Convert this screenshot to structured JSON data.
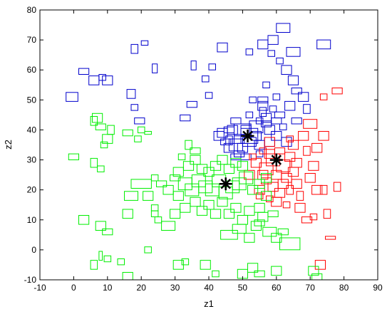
{
  "chart_data": {
    "type": "scatter",
    "xlabel": "z1",
    "ylabel": "z2",
    "xlim": [
      -10,
      90
    ],
    "ylim": [
      -10,
      80
    ],
    "xticks": [
      "-10",
      "0",
      "10",
      "20",
      "30",
      "40",
      "50",
      "60",
      "70",
      "80",
      "90"
    ],
    "yticks": [
      "-10",
      "0",
      "10",
      "20",
      "30",
      "40",
      "50",
      "60",
      "70",
      "80"
    ],
    "grid": false,
    "marker": "rectangle",
    "series": [
      {
        "color": "#0000cc",
        "points": [
          [
            -0.5,
            51,
            3.5,
            3
          ],
          [
            3,
            59.5,
            3,
            2
          ],
          [
            6,
            56.5,
            3,
            3
          ],
          [
            8.5,
            57.5,
            2,
            2
          ],
          [
            10,
            56.5,
            3,
            3
          ],
          [
            17,
            52,
            2.5,
            3
          ],
          [
            18,
            47.5,
            2,
            2
          ],
          [
            19.5,
            43,
            3,
            2
          ],
          [
            18,
            67,
            2,
            3
          ],
          [
            21,
            69,
            2,
            1.5
          ],
          [
            24,
            60.5,
            1.5,
            3
          ],
          [
            35.5,
            61.5,
            1.5,
            3
          ],
          [
            35,
            48.5,
            3,
            2
          ],
          [
            33,
            44,
            3,
            2
          ],
          [
            40,
            51.5,
            2,
            2
          ],
          [
            39,
            57,
            2,
            2
          ],
          [
            41,
            61,
            2,
            2
          ],
          [
            44,
            67.5,
            3,
            3
          ],
          [
            46,
            36.5,
            2,
            3
          ],
          [
            52,
            66,
            2,
            2
          ],
          [
            56,
            68.5,
            3,
            3
          ],
          [
            59,
            70,
            3,
            3
          ],
          [
            62,
            74,
            4,
            3
          ],
          [
            65,
            66,
            4,
            3
          ],
          [
            74,
            68.5,
            4,
            3
          ],
          [
            61,
            63,
            2,
            2
          ],
          [
            58.5,
            65.5,
            2,
            2
          ],
          [
            63,
            60,
            3,
            3
          ],
          [
            65,
            56.5,
            3,
            3
          ],
          [
            66,
            53,
            3,
            2
          ],
          [
            68,
            51,
            3,
            3
          ],
          [
            69,
            47,
            2,
            3
          ],
          [
            66,
            43,
            3,
            2
          ],
          [
            56,
            48,
            3,
            3
          ],
          [
            52,
            45,
            2,
            2
          ],
          [
            48,
            43,
            3,
            2
          ],
          [
            44,
            39,
            3,
            3
          ],
          [
            46,
            34,
            3,
            3
          ],
          [
            49,
            32,
            3,
            2
          ],
          [
            55,
            43,
            2,
            2
          ],
          [
            58,
            40,
            3,
            3
          ],
          [
            60,
            38,
            3,
            3
          ],
          [
            63,
            36,
            3,
            3
          ],
          [
            50,
            40,
            5,
            4
          ],
          [
            54,
            41,
            4,
            4
          ],
          [
            52,
            36,
            4,
            3
          ],
          [
            57,
            44,
            3,
            3
          ],
          [
            61,
            45,
            3,
            2
          ],
          [
            47,
            40,
            3,
            3
          ],
          [
            45,
            36,
            3,
            2
          ],
          [
            48,
            35,
            4,
            4
          ],
          [
            52,
            38,
            5,
            5
          ],
          [
            55,
            35,
            3,
            3
          ],
          [
            43,
            38,
            3,
            3
          ],
          [
            46,
            40,
            3,
            2
          ],
          [
            50,
            34,
            3,
            3
          ],
          [
            58,
            36,
            3,
            3
          ],
          [
            59,
            47,
            2,
            2
          ],
          [
            57,
            55,
            2,
            2
          ],
          [
            56,
            50,
            3,
            2
          ],
          [
            53,
            50,
            2,
            2
          ],
          [
            49,
            37,
            3,
            3
          ],
          [
            51,
            40,
            3,
            3
          ],
          [
            54,
            38,
            3,
            3
          ],
          [
            57,
            42,
            3,
            2
          ],
          [
            56,
            46,
            2,
            3
          ],
          [
            60,
            43,
            3,
            2
          ],
          [
            62,
            41,
            2,
            2
          ],
          [
            64,
            48,
            3,
            3
          ],
          [
            60,
            51,
            2,
            2
          ],
          [
            48,
            31,
            3,
            2
          ],
          [
            51,
            31,
            3,
            2
          ],
          [
            55,
            32,
            2,
            2
          ]
        ]
      },
      {
        "color": "#ff0000",
        "points": [
          [
            54,
            29,
            3,
            3
          ],
          [
            57,
            27,
            4,
            4
          ],
          [
            59,
            30,
            4,
            4
          ],
          [
            62,
            28,
            4,
            4
          ],
          [
            60,
            25,
            3,
            3
          ],
          [
            63,
            24,
            3,
            3
          ],
          [
            58,
            32,
            3,
            3
          ],
          [
            56,
            25,
            3,
            3
          ],
          [
            61,
            33,
            3,
            2
          ],
          [
            64,
            31,
            3,
            3
          ],
          [
            66,
            29,
            3,
            3
          ],
          [
            65,
            26,
            3,
            3
          ],
          [
            62,
            22,
            3,
            3
          ],
          [
            59,
            21,
            3,
            3
          ],
          [
            57,
            23,
            3,
            2
          ],
          [
            55,
            20,
            3,
            3
          ],
          [
            61,
            19,
            3,
            3
          ],
          [
            64,
            20,
            2,
            3
          ],
          [
            67,
            18,
            2,
            3
          ],
          [
            60,
            16,
            3,
            3
          ],
          [
            63,
            15,
            2,
            2
          ],
          [
            58,
            17,
            2,
            2
          ],
          [
            65,
            35,
            3,
            3
          ],
          [
            68,
            38,
            3,
            3
          ],
          [
            70,
            42,
            4,
            3
          ],
          [
            74,
            38,
            3,
            3
          ],
          [
            72,
            34,
            3,
            3
          ],
          [
            71,
            28,
            3,
            3
          ],
          [
            70,
            24,
            3,
            3
          ],
          [
            72,
            20,
            3,
            3
          ],
          [
            71,
            11,
            2,
            2
          ],
          [
            75,
            12,
            2,
            3
          ],
          [
            74,
            20,
            2,
            3
          ],
          [
            69,
            33,
            2,
            3
          ],
          [
            66,
            22,
            3,
            3
          ],
          [
            78,
            21,
            2,
            3
          ],
          [
            78,
            53,
            3,
            2
          ],
          [
            74,
            51,
            2,
            2
          ],
          [
            76,
            4,
            3,
            1
          ],
          [
            73,
            -5,
            3,
            3
          ],
          [
            58,
            36,
            3,
            3
          ],
          [
            56,
            33,
            2,
            2
          ],
          [
            53,
            31,
            2,
            2
          ],
          [
            64,
            37,
            2,
            2
          ],
          [
            52,
            25,
            3,
            3
          ],
          [
            55,
            18,
            2,
            2
          ],
          [
            67,
            14,
            3,
            3
          ],
          [
            69,
            10,
            3,
            2
          ]
        ]
      },
      {
        "color": "#00ee00",
        "points": [
          [
            0,
            31,
            3,
            2
          ],
          [
            6,
            43,
            2,
            3
          ],
          [
            7,
            44,
            3,
            3
          ],
          [
            8,
            41,
            3,
            2
          ],
          [
            10,
            37,
            3,
            3
          ],
          [
            11,
            40,
            2,
            3
          ],
          [
            9,
            35,
            2,
            2
          ],
          [
            6,
            29,
            2,
            3
          ],
          [
            8,
            27,
            2,
            2
          ],
          [
            6,
            -5,
            2,
            3
          ],
          [
            8,
            -2,
            1,
            3
          ],
          [
            10,
            -3,
            2,
            2
          ],
          [
            14,
            -4,
            2,
            2
          ],
          [
            16,
            -9,
            3,
            3
          ],
          [
            22,
            0,
            2,
            2
          ],
          [
            24,
            12,
            2,
            2
          ],
          [
            16,
            12,
            3,
            3
          ],
          [
            17,
            18,
            4,
            3
          ],
          [
            22,
            18,
            3,
            3
          ],
          [
            20,
            22,
            6,
            3
          ],
          [
            16,
            39,
            3,
            2
          ],
          [
            19,
            37,
            2,
            2
          ],
          [
            20,
            40,
            2,
            2
          ],
          [
            22,
            39,
            2,
            1
          ],
          [
            3,
            10,
            3,
            3
          ],
          [
            8,
            8,
            3,
            3
          ],
          [
            10,
            6,
            3,
            2
          ],
          [
            25,
            10,
            2,
            2
          ],
          [
            24,
            14,
            2,
            2
          ],
          [
            28,
            8,
            4,
            3
          ],
          [
            30,
            12,
            3,
            3
          ],
          [
            31,
            18,
            3,
            3
          ],
          [
            33,
            22,
            4,
            4
          ],
          [
            35,
            20,
            4,
            4
          ],
          [
            37,
            23,
            4,
            4
          ],
          [
            39,
            21,
            4,
            4
          ],
          [
            41,
            20,
            4,
            4
          ],
          [
            43,
            23,
            4,
            4
          ],
          [
            45,
            19,
            4,
            4
          ],
          [
            47,
            21,
            4,
            4
          ],
          [
            49,
            22,
            4,
            4
          ],
          [
            51,
            24,
            4,
            4
          ],
          [
            53,
            20,
            3,
            3
          ],
          [
            55,
            22,
            3,
            3
          ],
          [
            57,
            18,
            3,
            3
          ],
          [
            31,
            26,
            3,
            3
          ],
          [
            34,
            28,
            3,
            3
          ],
          [
            36,
            30,
            3,
            3
          ],
          [
            38,
            27,
            3,
            3
          ],
          [
            40,
            26,
            3,
            3
          ],
          [
            42,
            28,
            3,
            3
          ],
          [
            44,
            30,
            3,
            3
          ],
          [
            46,
            27,
            3,
            3
          ],
          [
            48,
            29,
            3,
            3
          ],
          [
            50,
            28,
            3,
            3
          ],
          [
            33,
            14,
            3,
            3
          ],
          [
            36,
            16,
            3,
            3
          ],
          [
            38,
            13,
            3,
            3
          ],
          [
            40,
            15,
            3,
            3
          ],
          [
            42,
            12,
            3,
            3
          ],
          [
            44,
            16,
            3,
            3
          ],
          [
            46,
            12,
            3,
            3
          ],
          [
            48,
            14,
            3,
            3
          ],
          [
            50,
            10,
            3,
            3
          ],
          [
            52,
            13,
            3,
            3
          ],
          [
            54,
            8,
            3,
            3
          ],
          [
            56,
            11,
            3,
            3
          ],
          [
            58,
            6,
            4,
            3
          ],
          [
            60,
            4,
            3,
            3
          ],
          [
            62,
            6,
            3,
            2
          ],
          [
            64,
            2,
            6,
            4
          ],
          [
            46,
            5,
            5,
            3
          ],
          [
            49,
            7,
            4,
            3
          ],
          [
            52,
            4,
            3,
            3
          ],
          [
            55,
            9,
            3,
            2
          ],
          [
            31,
            -5,
            3,
            3
          ],
          [
            33,
            -4,
            2,
            2
          ],
          [
            39,
            -5,
            3,
            3
          ],
          [
            42,
            -8,
            2,
            2
          ],
          [
            50,
            -8,
            3,
            3
          ],
          [
            53,
            -6,
            3,
            3
          ],
          [
            55,
            -8,
            3,
            2
          ],
          [
            60,
            -7,
            3,
            3
          ],
          [
            71,
            -7,
            3,
            3
          ],
          [
            72,
            -9,
            3,
            2
          ],
          [
            34,
            35,
            2,
            3
          ],
          [
            36,
            33,
            3,
            2
          ],
          [
            32,
            31,
            2,
            2
          ],
          [
            30,
            24,
            3,
            2
          ],
          [
            28,
            20,
            3,
            3
          ],
          [
            26,
            22,
            3,
            2
          ],
          [
            24,
            24,
            2,
            2
          ],
          [
            57,
            24,
            3,
            3
          ],
          [
            55,
            14,
            3,
            3
          ],
          [
            59,
            12,
            3,
            2
          ]
        ]
      }
    ],
    "centroids": [
      {
        "x": 45,
        "y": 22
      },
      {
        "x": 51.5,
        "y": 38
      },
      {
        "x": 60,
        "y": 30
      }
    ]
  }
}
